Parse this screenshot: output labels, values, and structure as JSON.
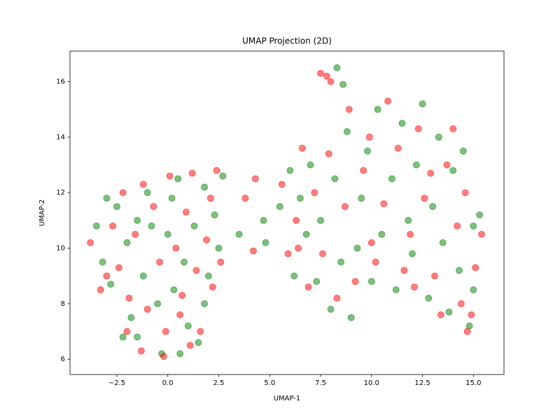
{
  "chart_data": {
    "type": "scatter",
    "title": "UMAP Projection (2D)",
    "xlabel": "UMAP-1",
    "ylabel": "UMAP-2",
    "xlim": [
      -4.8,
      16.5
    ],
    "ylim": [
      5.45,
      17.1
    ],
    "xticks": [
      {
        "value": -2.5,
        "label": "−2.5"
      },
      {
        "value": 0,
        "label": "0.0"
      },
      {
        "value": 2.5,
        "label": "2.5"
      },
      {
        "value": 5,
        "label": "5.0"
      },
      {
        "value": 7.5,
        "label": "7.5"
      },
      {
        "value": 10,
        "label": "10.0"
      },
      {
        "value": 12.5,
        "label": "12.5"
      },
      {
        "value": 15,
        "label": "15.0"
      }
    ],
    "yticks": [
      6,
      8,
      10,
      12,
      14,
      16
    ],
    "series": [
      {
        "color": "#008000",
        "x": [
          -3.5,
          -3.2,
          -2.8,
          -2.5,
          -2.0,
          -1.8,
          -1.5,
          -1.2,
          -1.0,
          -0.5,
          -0.3,
          0.0,
          0.2,
          0.5,
          0.8,
          1.0,
          1.3,
          1.5,
          1.8,
          2.0,
          2.3,
          2.5,
          -3.0,
          -2.2,
          -0.8,
          0.3,
          1.8,
          -1.5,
          2.7,
          0.6,
          3.5,
          4.8,
          4.7,
          5.5,
          6.0,
          6.2,
          6.8,
          7.0,
          7.3,
          7.5,
          8.0,
          8.2,
          8.5,
          8.8,
          9.0,
          9.5,
          9.8,
          10.0,
          10.3,
          10.5,
          11.0,
          11.2,
          11.5,
          12.0,
          12.2,
          12.5,
          12.8,
          13.0,
          13.3,
          13.5,
          13.8,
          14.0,
          14.3,
          14.5,
          14.8,
          15.0,
          15.3,
          15.0,
          8.3,
          8.6,
          11.8,
          9.3,
          6.5
        ],
        "y": [
          10.8,
          9.5,
          8.7,
          11.5,
          10.2,
          7.5,
          6.8,
          9.0,
          12.0,
          8.0,
          6.2,
          10.5,
          11.8,
          12.5,
          9.5,
          7.2,
          10.8,
          6.6,
          12.2,
          9.0,
          11.2,
          10.0,
          11.8,
          6.8,
          10.8,
          8.5,
          8.0,
          11.0,
          12.6,
          6.2,
          10.5,
          10.2,
          11.0,
          11.5,
          12.8,
          9.0,
          10.5,
          13.0,
          8.8,
          11.0,
          7.8,
          12.5,
          9.5,
          14.2,
          7.5,
          11.8,
          13.5,
          8.8,
          15.0,
          10.5,
          12.5,
          8.5,
          14.5,
          9.8,
          13.0,
          15.2,
          8.2,
          11.5,
          14.0,
          10.2,
          7.7,
          12.8,
          9.2,
          13.5,
          7.2,
          10.8,
          11.2,
          8.5,
          16.5,
          15.9,
          11.0,
          10.0,
          11.8
        ]
      },
      {
        "color": "#ff0000",
        "x": [
          -3.8,
          -3.3,
          -2.7,
          -2.4,
          -2.2,
          -1.9,
          -1.6,
          -1.3,
          -1.0,
          -0.7,
          -0.4,
          -0.1,
          0.1,
          0.4,
          0.7,
          0.9,
          1.2,
          1.4,
          1.6,
          1.9,
          2.1,
          2.4,
          2.6,
          -3.0,
          -2.0,
          -0.2,
          0.6,
          1.1,
          2.2,
          -1.2,
          3.8,
          4.3,
          4.2,
          5.6,
          5.9,
          6.3,
          6.6,
          6.9,
          7.2,
          7.6,
          7.8,
          7.9,
          8.3,
          8.7,
          8.9,
          9.2,
          9.6,
          9.9,
          10.2,
          10.6,
          10.8,
          11.3,
          11.6,
          11.9,
          12.3,
          12.6,
          12.9,
          13.1,
          13.4,
          13.7,
          14.0,
          14.2,
          14.4,
          14.6,
          14.7,
          15.1,
          15.4,
          14.9,
          8.0,
          7.5,
          10.0,
          12.1,
          6.4
        ],
        "y": [
          10.2,
          8.5,
          10.8,
          9.3,
          12.0,
          8.2,
          10.5,
          6.3,
          7.8,
          11.5,
          9.5,
          7.0,
          12.6,
          10.0,
          8.3,
          11.3,
          12.7,
          9.2,
          7.0,
          10.3,
          11.8,
          12.8,
          9.5,
          9.0,
          7.0,
          6.1,
          7.6,
          6.5,
          8.6,
          12.3,
          11.8,
          12.5,
          9.9,
          12.3,
          9.8,
          11.0,
          13.6,
          8.6,
          12.0,
          9.8,
          16.2,
          13.4,
          8.2,
          11.5,
          15.0,
          8.8,
          12.8,
          14.0,
          9.5,
          11.6,
          15.3,
          13.6,
          9.2,
          10.5,
          14.3,
          11.8,
          12.7,
          9.0,
          7.6,
          13.0,
          14.3,
          10.8,
          8.0,
          12.0,
          7.0,
          9.3,
          10.5,
          7.6,
          16.0,
          16.3,
          10.2,
          8.6,
          10.0
        ]
      }
    ]
  }
}
